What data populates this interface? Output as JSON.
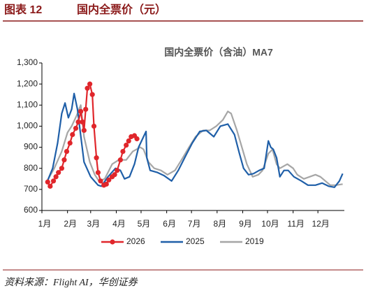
{
  "header": {
    "label": "图表 12",
    "title": "国内全票价（元）"
  },
  "source": "资料来源：Flight AI，华创证券",
  "chart_data": {
    "type": "line",
    "title": "国内全票价（含油）MA7",
    "xlim": [
      1,
      367
    ],
    "xticks": [
      {
        "value": 1,
        "label": "1月"
      },
      {
        "value": 32,
        "label": "2月"
      },
      {
        "value": 60,
        "label": "3月"
      },
      {
        "value": 91,
        "label": "4月"
      },
      {
        "value": 121,
        "label": "5月"
      },
      {
        "value": 152,
        "label": "6月"
      },
      {
        "value": 182,
        "label": "7月"
      },
      {
        "value": 213,
        "label": "8月"
      },
      {
        "value": 244,
        "label": "9月"
      },
      {
        "value": 274,
        "label": "10月"
      },
      {
        "value": 305,
        "label": "11月"
      },
      {
        "value": 335,
        "label": "12月"
      }
    ],
    "ylim": [
      600,
      1300
    ],
    "yticks": [
      600,
      700,
      800,
      900,
      {
        "value": 1000,
        "label": "1,000"
      },
      {
        "value": 1100,
        "label": "1,100"
      },
      {
        "value": 1200,
        "label": "1,200"
      },
      {
        "value": 1300,
        "label": "1,300"
      }
    ],
    "legend": "bottom",
    "series": [
      {
        "name": "2026",
        "color": "#e0262b",
        "marker": true,
        "x": [
          8,
          11,
          15,
          18,
          21,
          25,
          28,
          31,
          35,
          38,
          42,
          45,
          48,
          50,
          52,
          54,
          56,
          59,
          62,
          64,
          67,
          69,
          72,
          76,
          79,
          82,
          86,
          89,
          92,
          96,
          99,
          103,
          106,
          109,
          113,
          116
        ],
        "values": [
          735,
          715,
          740,
          760,
          780,
          800,
          840,
          880,
          920,
          960,
          990,
          1020,
          1070,
          1020,
          980,
          1080,
          1180,
          1200,
          1150,
          1000,
          850,
          780,
          740,
          720,
          725,
          745,
          760,
          770,
          790,
          840,
          880,
          910,
          930,
          950,
          955,
          940
        ]
      },
      {
        "name": "2025",
        "color": "#1f5fa8",
        "marker": false,
        "x": [
          8,
          14,
          20,
          25,
          29,
          33,
          37,
          40,
          44,
          52,
          60,
          69,
          73,
          81,
          90,
          96,
          101,
          107,
          113,
          118,
          124,
          127,
          128,
          132,
          141,
          149,
          158,
          166,
          175,
          183,
          192,
          200,
          209,
          217,
          226,
          234,
          240,
          245,
          251,
          257,
          264,
          270,
          275,
          278,
          281,
          285,
          289,
          294,
          299,
          306,
          315,
          323,
          332,
          340,
          348,
          355,
          361,
          365
        ],
        "values": [
          743,
          800,
          920,
          1060,
          1110,
          1040,
          1080,
          1155,
          1080,
          830,
          760,
          720,
          715,
          760,
          800,
          790,
          750,
          760,
          820,
          900,
          950,
          975,
          850,
          790,
          780,
          765,
          740,
          790,
          860,
          920,
          975,
          980,
          950,
          1000,
          1010,
          960,
          870,
          800,
          770,
          775,
          790,
          800,
          930,
          900,
          890,
          850,
          760,
          790,
          790,
          760,
          740,
          720,
          720,
          730,
          715,
          710,
          740,
          775
        ]
      },
      {
        "name": "2019",
        "color": "#a6a6a6",
        "marker": false,
        "x": [
          8,
          16,
          25,
          32,
          37,
          43,
          48,
          52,
          59,
          65,
          70,
          77,
          86,
          94,
          103,
          111,
          120,
          124,
          130,
          137,
          145,
          153,
          162,
          170,
          179,
          187,
          196,
          204,
          212,
          220,
          226,
          230,
          237,
          243,
          249,
          256,
          263,
          268,
          275,
          280,
          285,
          289,
          298,
          305,
          310,
          318,
          325,
          332,
          338,
          344,
          350,
          357,
          365
        ],
        "values": [
          745,
          800,
          880,
          970,
          1000,
          1050,
          1100,
          950,
          830,
          770,
          740,
          750,
          820,
          840,
          840,
          880,
          900,
          890,
          830,
          800,
          790,
          770,
          790,
          840,
          900,
          950,
          980,
          980,
          1000,
          1030,
          1070,
          1060,
          980,
          900,
          820,
          760,
          770,
          790,
          870,
          890,
          820,
          800,
          820,
          800,
          770,
          750,
          760,
          770,
          760,
          740,
          720,
          720,
          725
        ]
      }
    ]
  }
}
